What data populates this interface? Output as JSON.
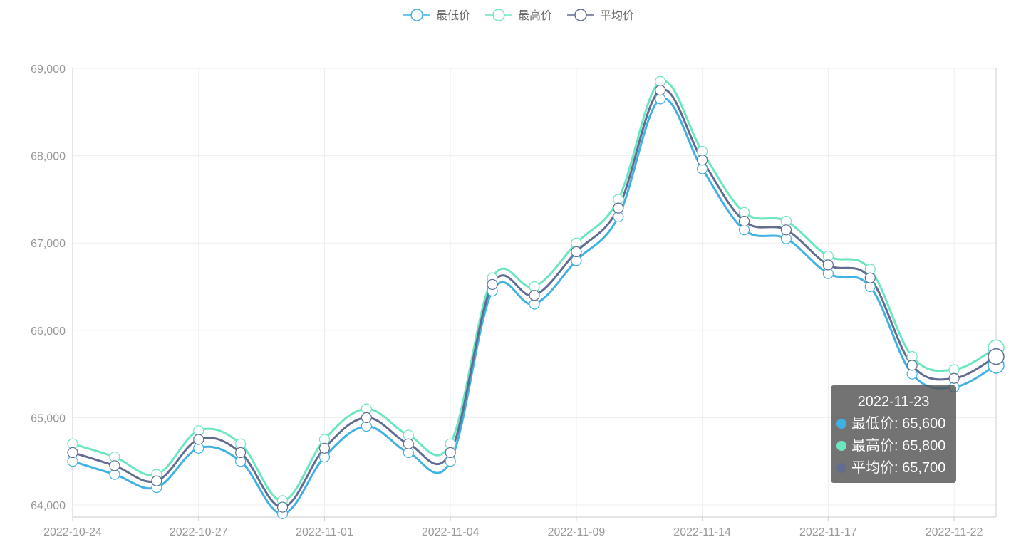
{
  "chart_data": {
    "type": "line",
    "smooth": true,
    "legend_position": "top-center",
    "grid": true,
    "x": [
      "2022-10-24",
      "2022-10-25",
      "2022-10-26",
      "2022-10-27",
      "2022-10-28",
      "2022-10-31",
      "2022-11-01",
      "2022-11-02",
      "2022-11-03",
      "2022-11-04",
      "2022-11-07",
      "2022-11-08",
      "2022-11-09",
      "2022-11-10",
      "2022-11-11",
      "2022-11-14",
      "2022-11-15",
      "2022-11-16",
      "2022-11-17",
      "2022-11-18",
      "2022-11-21",
      "2022-11-22",
      "2022-11-23"
    ],
    "x_tick_labels": [
      "2022-10-24",
      "2022-10-27",
      "2022-11-01",
      "2022-11-04",
      "2022-11-09",
      "2022-11-14",
      "2022-11-17",
      "2022-11-22"
    ],
    "ylim": [
      64000,
      69000
    ],
    "y_ticks": [
      64000,
      65000,
      66000,
      67000,
      68000,
      69000
    ],
    "y_tick_labels": [
      "64,000",
      "65,000",
      "66,000",
      "67,000",
      "68,000",
      "69,000"
    ],
    "series": [
      {
        "name": "最低价",
        "color": "#3fb1e3",
        "values": [
          64500,
          64350,
          64200,
          64650,
          64500,
          63900,
          64550,
          64900,
          64600,
          64500,
          66450,
          66300,
          66800,
          67300,
          68650,
          67850,
          67150,
          67050,
          66650,
          66500,
          65500,
          65350,
          65600
        ]
      },
      {
        "name": "最高价",
        "color": "#6be6c1",
        "values": [
          64700,
          64550,
          64350,
          64850,
          64700,
          64050,
          64750,
          65100,
          64800,
          64700,
          66600,
          66500,
          67000,
          67500,
          68850,
          68050,
          67350,
          67250,
          66850,
          66700,
          65700,
          65550,
          65800
        ]
      },
      {
        "name": "平均价",
        "color": "#626c91",
        "values": [
          64600,
          64450,
          64275,
          64750,
          64600,
          63975,
          64650,
          65000,
          64700,
          64600,
          66525,
          66400,
          66900,
          67400,
          68750,
          67950,
          67250,
          67150,
          66750,
          66600,
          65600,
          65450,
          65700
        ]
      }
    ]
  },
  "tooltip": {
    "title": "2022-11-23",
    "rows": [
      {
        "label": "最低价: 65,600",
        "color": "#3fb1e3"
      },
      {
        "label": "最高价: 65,800",
        "color": "#6be6c1"
      },
      {
        "label": "平均价: 65,700",
        "color": "#626c91"
      }
    ]
  }
}
